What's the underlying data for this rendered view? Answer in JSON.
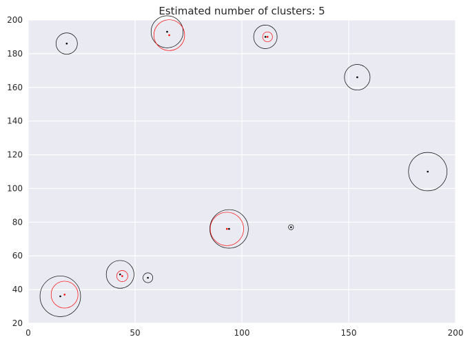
{
  "chart_data": {
    "type": "scatter",
    "title": "Estimated number of clusters: 5",
    "xlabel": "",
    "ylabel": "",
    "xlim": [
      0,
      200
    ],
    "ylim": [
      20,
      200
    ],
    "xticks": [
      "0",
      "50",
      "100",
      "150",
      "200"
    ],
    "yticks": [
      "20",
      "40",
      "60",
      "80",
      "100",
      "120",
      "140",
      "160",
      "180",
      "200"
    ],
    "grid": true,
    "colors": {
      "background": "#eaeaf2",
      "grid": "#ffffff",
      "black_series": "#000000",
      "red_series": "#ff0000",
      "text": "#262626"
    },
    "series": [
      {
        "color": "#000000",
        "points": [
          {
            "x": 18,
            "y": 186,
            "r": 5
          },
          {
            "x": 65,
            "y": 193,
            "r": 7.5
          },
          {
            "x": 111,
            "y": 190,
            "r": 5.5
          },
          {
            "x": 154,
            "y": 166,
            "r": 6
          },
          {
            "x": 187,
            "y": 110,
            "r": 9
          },
          {
            "x": 94,
            "y": 76,
            "r": 9
          },
          {
            "x": 123,
            "y": 77,
            "r": 1.2
          },
          {
            "x": 43,
            "y": 49,
            "r": 6.5
          },
          {
            "x": 56,
            "y": 47,
            "r": 2.3
          },
          {
            "x": 15,
            "y": 36,
            "r": 9.5
          }
        ]
      },
      {
        "color": "#ff0000",
        "points": [
          {
            "x": 66,
            "y": 191,
            "r": 7.2
          },
          {
            "x": 112,
            "y": 190,
            "r": 2.3
          },
          {
            "x": 93,
            "y": 76,
            "r": 7.8
          },
          {
            "x": 44,
            "y": 48,
            "r": 2.6
          },
          {
            "x": 17,
            "y": 37,
            "r": 6.3
          }
        ]
      }
    ]
  }
}
